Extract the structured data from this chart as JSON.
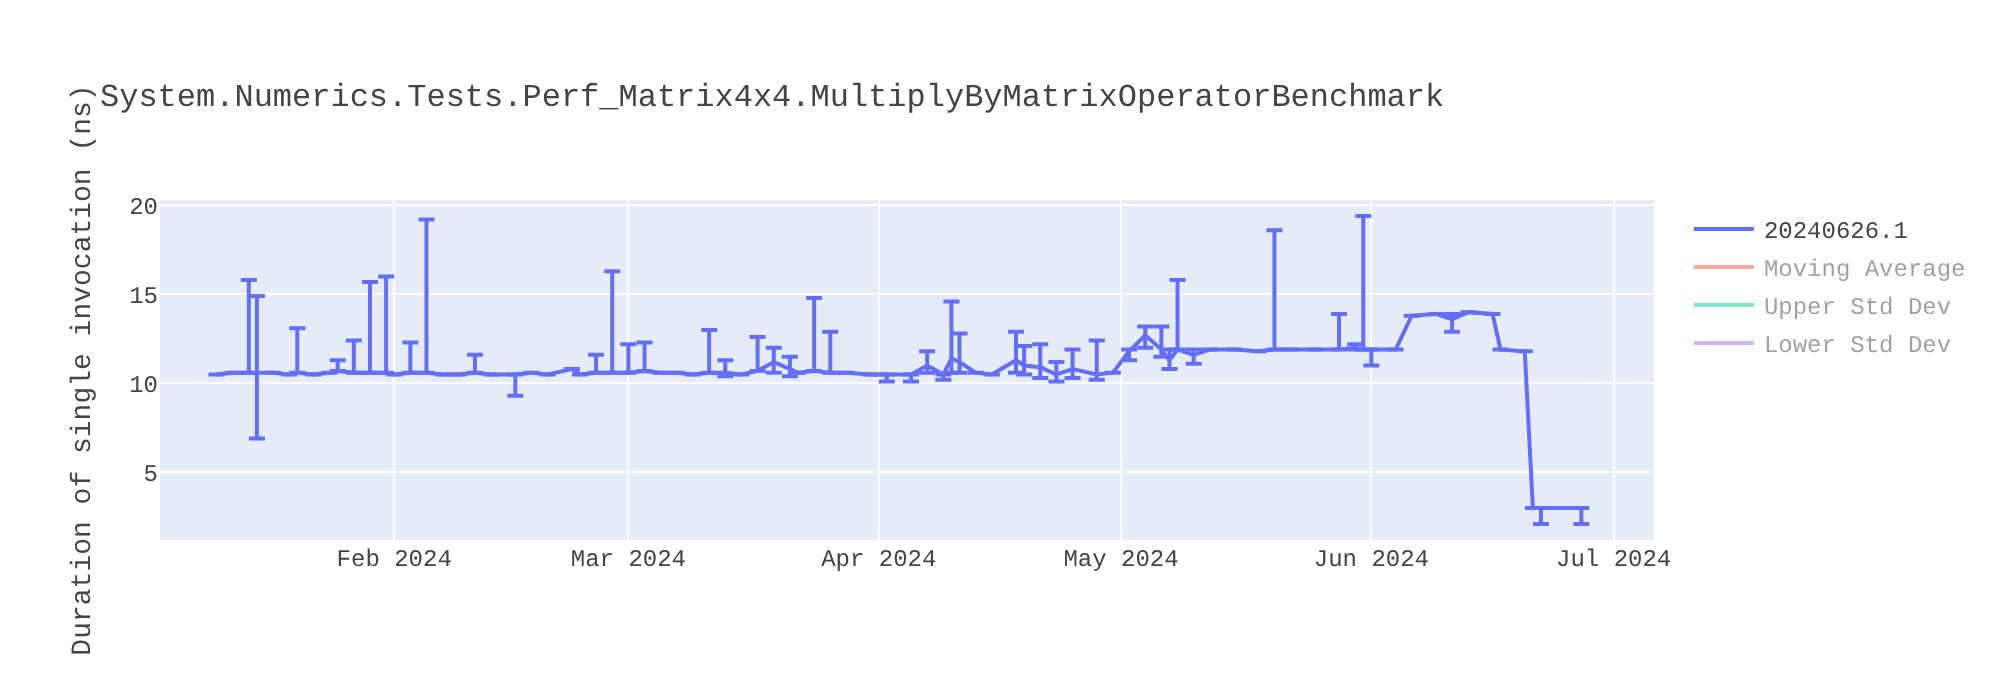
{
  "chart_data": {
    "type": "line",
    "title": "System.Numerics.Tests.Perf_Matrix4x4.MultiplyByMatrixOperatorBenchmark",
    "ylabel": "Duration of single invocation (ns)",
    "x": [
      "2024-01-10",
      "2024-01-12",
      "2024-01-14",
      "2024-01-15",
      "2024-01-17",
      "2024-01-19",
      "2024-01-20",
      "2024-01-22",
      "2024-01-24",
      "2024-01-25",
      "2024-01-27",
      "2024-01-29",
      "2024-01-31",
      "2024-02-01",
      "2024-02-03",
      "2024-02-05",
      "2024-02-07",
      "2024-02-09",
      "2024-02-11",
      "2024-02-13",
      "2024-02-16",
      "2024-02-18",
      "2024-02-20",
      "2024-02-23",
      "2024-02-24",
      "2024-02-26",
      "2024-02-28",
      "2024-03-01",
      "2024-03-03",
      "2024-03-05",
      "2024-03-07",
      "2024-03-09",
      "2024-03-11",
      "2024-03-13",
      "2024-03-15",
      "2024-03-17",
      "2024-03-19",
      "2024-03-21",
      "2024-03-22",
      "2024-03-24",
      "2024-03-26",
      "2024-03-28",
      "2024-03-31",
      "2024-04-02",
      "2024-04-05",
      "2024-04-07",
      "2024-04-09",
      "2024-04-10",
      "2024-04-11",
      "2024-04-13",
      "2024-04-15",
      "2024-04-18",
      "2024-04-19",
      "2024-04-21",
      "2024-04-23",
      "2024-04-25",
      "2024-04-28",
      "2024-04-30",
      "2024-05-02",
      "2024-05-04",
      "2024-05-06",
      "2024-05-07",
      "2024-05-08",
      "2024-05-10",
      "2024-05-12",
      "2024-05-15",
      "2024-05-18",
      "2024-05-20",
      "2024-05-22",
      "2024-05-25",
      "2024-05-28",
      "2024-05-30",
      "2024-05-31",
      "2024-06-01",
      "2024-06-04",
      "2024-06-06",
      "2024-06-09",
      "2024-06-11",
      "2024-06-13",
      "2024-06-16",
      "2024-06-17",
      "2024-06-20",
      "2024-06-21",
      "2024-06-22",
      "2024-06-24",
      "2024-06-27"
    ],
    "series": [
      {
        "name": "20240626.1",
        "color": "#636efa",
        "values": [
          10.5,
          10.6,
          10.6,
          10.6,
          10.6,
          10.5,
          10.6,
          10.5,
          10.6,
          10.7,
          10.6,
          10.6,
          10.6,
          10.5,
          10.6,
          10.6,
          10.5,
          10.5,
          10.6,
          10.5,
          10.5,
          10.6,
          10.5,
          10.8,
          10.5,
          10.6,
          10.6,
          10.6,
          10.7,
          10.6,
          10.6,
          10.5,
          10.6,
          10.6,
          10.5,
          10.7,
          11.2,
          10.8,
          10.6,
          10.7,
          10.6,
          10.6,
          10.5,
          10.5,
          10.5,
          11.0,
          10.5,
          11.4,
          11.2,
          10.6,
          10.5,
          11.3,
          11.0,
          10.9,
          10.5,
          10.8,
          10.5,
          10.6,
          11.8,
          12.7,
          11.9,
          11.3,
          11.9,
          11.6,
          11.9,
          11.9,
          11.8,
          11.9,
          11.9,
          11.9,
          11.9,
          12.0,
          11.9,
          11.9,
          11.9,
          13.8,
          13.9,
          13.6,
          14.0,
          13.9,
          11.9,
          11.8,
          3.0,
          3.0,
          3.0,
          3.0
        ],
        "errors": [
          null,
          null,
          [
            10.6,
            15.8
          ],
          [
            6.9,
            14.9
          ],
          null,
          null,
          [
            10.6,
            13.1
          ],
          null,
          null,
          [
            10.7,
            11.3
          ],
          [
            10.6,
            12.4
          ],
          [
            10.6,
            15.7
          ],
          [
            10.6,
            16.0
          ],
          null,
          [
            10.6,
            12.3
          ],
          [
            10.6,
            19.2
          ],
          null,
          null,
          [
            10.6,
            11.6
          ],
          null,
          [
            9.3,
            10.5
          ],
          null,
          null,
          null,
          null,
          [
            10.6,
            11.6
          ],
          [
            10.6,
            16.3
          ],
          [
            10.6,
            12.2
          ],
          [
            10.7,
            12.3
          ],
          null,
          null,
          null,
          [
            10.6,
            13.0
          ],
          [
            10.4,
            11.3
          ],
          null,
          [
            10.7,
            12.6
          ],
          [
            10.6,
            12.0
          ],
          [
            10.4,
            11.5
          ],
          null,
          [
            10.7,
            14.8
          ],
          [
            10.6,
            12.9
          ],
          null,
          null,
          [
            10.1,
            10.5
          ],
          [
            10.1,
            10.5
          ],
          [
            10.6,
            11.8
          ],
          [
            10.2,
            10.5
          ],
          [
            10.6,
            14.6
          ],
          [
            10.6,
            12.8
          ],
          null,
          null,
          [
            10.6,
            12.9
          ],
          [
            10.5,
            12.1
          ],
          [
            10.3,
            12.2
          ],
          [
            10.1,
            11.2
          ],
          [
            10.3,
            11.9
          ],
          [
            10.2,
            12.4
          ],
          null,
          [
            11.3,
            11.9
          ],
          [
            12.0,
            13.2
          ],
          [
            11.5,
            13.2
          ],
          [
            10.8,
            11.9
          ],
          [
            11.9,
            15.8
          ],
          [
            11.1,
            11.9
          ],
          null,
          null,
          null,
          [
            11.9,
            18.6
          ],
          null,
          null,
          [
            11.9,
            13.9
          ],
          [
            11.9,
            12.2
          ],
          [
            11.9,
            19.4
          ],
          [
            11.0,
            11.9
          ],
          null,
          null,
          null,
          [
            12.9,
            13.9
          ],
          null,
          null,
          null,
          null,
          null,
          [
            2.1,
            3.0
          ],
          null,
          [
            2.1,
            3.0
          ]
        ]
      },
      {
        "name": "Moving Average",
        "color": "#ef553b",
        "values": [
          null,
          null,
          null,
          null,
          null,
          null,
          null,
          null,
          null,
          null,
          null,
          null,
          null,
          null,
          null,
          null,
          null,
          null,
          null,
          null,
          null,
          null,
          null,
          null,
          null,
          null,
          null,
          null,
          null,
          null,
          null,
          null,
          null,
          null,
          null,
          null,
          null,
          null,
          null,
          null,
          null,
          null,
          null,
          null,
          null,
          null,
          null,
          null,
          null,
          null,
          null,
          null,
          null,
          null,
          null,
          null,
          null,
          null,
          null,
          null,
          null,
          null,
          null,
          null,
          null,
          null,
          null,
          null,
          null,
          null,
          null,
          null,
          null,
          null,
          null,
          null,
          null,
          null,
          null,
          null,
          null,
          null,
          null,
          null,
          null,
          null
        ]
      },
      {
        "name": "Upper Std Dev",
        "color": "#00cc96",
        "values": [
          null,
          null,
          null,
          null,
          null,
          null,
          null,
          null,
          null,
          null,
          null,
          null,
          null,
          null,
          null,
          null,
          null,
          null,
          null,
          null,
          null,
          null,
          null,
          null,
          null,
          null,
          null,
          null,
          null,
          null,
          null,
          null,
          null,
          null,
          null,
          null,
          null,
          null,
          null,
          null,
          null,
          null,
          null,
          null,
          null,
          null,
          null,
          null,
          null,
          null,
          null,
          null,
          null,
          null,
          null,
          null,
          null,
          null,
          null,
          null,
          null,
          null,
          null,
          null,
          null,
          null,
          null,
          null,
          null,
          null,
          null,
          null,
          null,
          null,
          null,
          null,
          null,
          null,
          null,
          null,
          null,
          null,
          null,
          null,
          null,
          null
        ]
      },
      {
        "name": "Lower Std Dev",
        "color": "#ab63fa",
        "values": [
          null,
          null,
          null,
          null,
          null,
          null,
          null,
          null,
          null,
          null,
          null,
          null,
          null,
          null,
          null,
          null,
          null,
          null,
          null,
          null,
          null,
          null,
          null,
          null,
          null,
          null,
          null,
          null,
          null,
          null,
          null,
          null,
          null,
          null,
          null,
          null,
          null,
          null,
          null,
          null,
          null,
          null,
          null,
          null,
          null,
          null,
          null,
          null,
          null,
          null,
          null,
          null,
          null,
          null,
          null,
          null,
          null,
          null,
          null,
          null,
          null,
          null,
          null,
          null,
          null,
          null,
          null,
          null,
          null,
          null,
          null,
          null,
          null,
          null,
          null,
          null,
          null,
          null,
          null,
          null,
          null,
          null,
          null,
          null,
          null,
          null
        ]
      }
    ],
    "xlim": [
      "2024-01-03",
      "2024-07-06"
    ],
    "xticks": [
      {
        "value": "2024-02-01",
        "label": "Feb 2024"
      },
      {
        "value": "2024-03-01",
        "label": "Mar 2024"
      },
      {
        "value": "2024-04-01",
        "label": "Apr 2024"
      },
      {
        "value": "2024-05-01",
        "label": "May 2024"
      },
      {
        "value": "2024-06-01",
        "label": "Jun 2024"
      },
      {
        "value": "2024-07-01",
        "label": "Jul 2024"
      }
    ],
    "ylim": [
      1.2,
      20.3
    ],
    "yticks": [
      5,
      10,
      15,
      20
    ],
    "grid": true,
    "legend": "top right",
    "marker": "none",
    "line_style": "solid"
  }
}
